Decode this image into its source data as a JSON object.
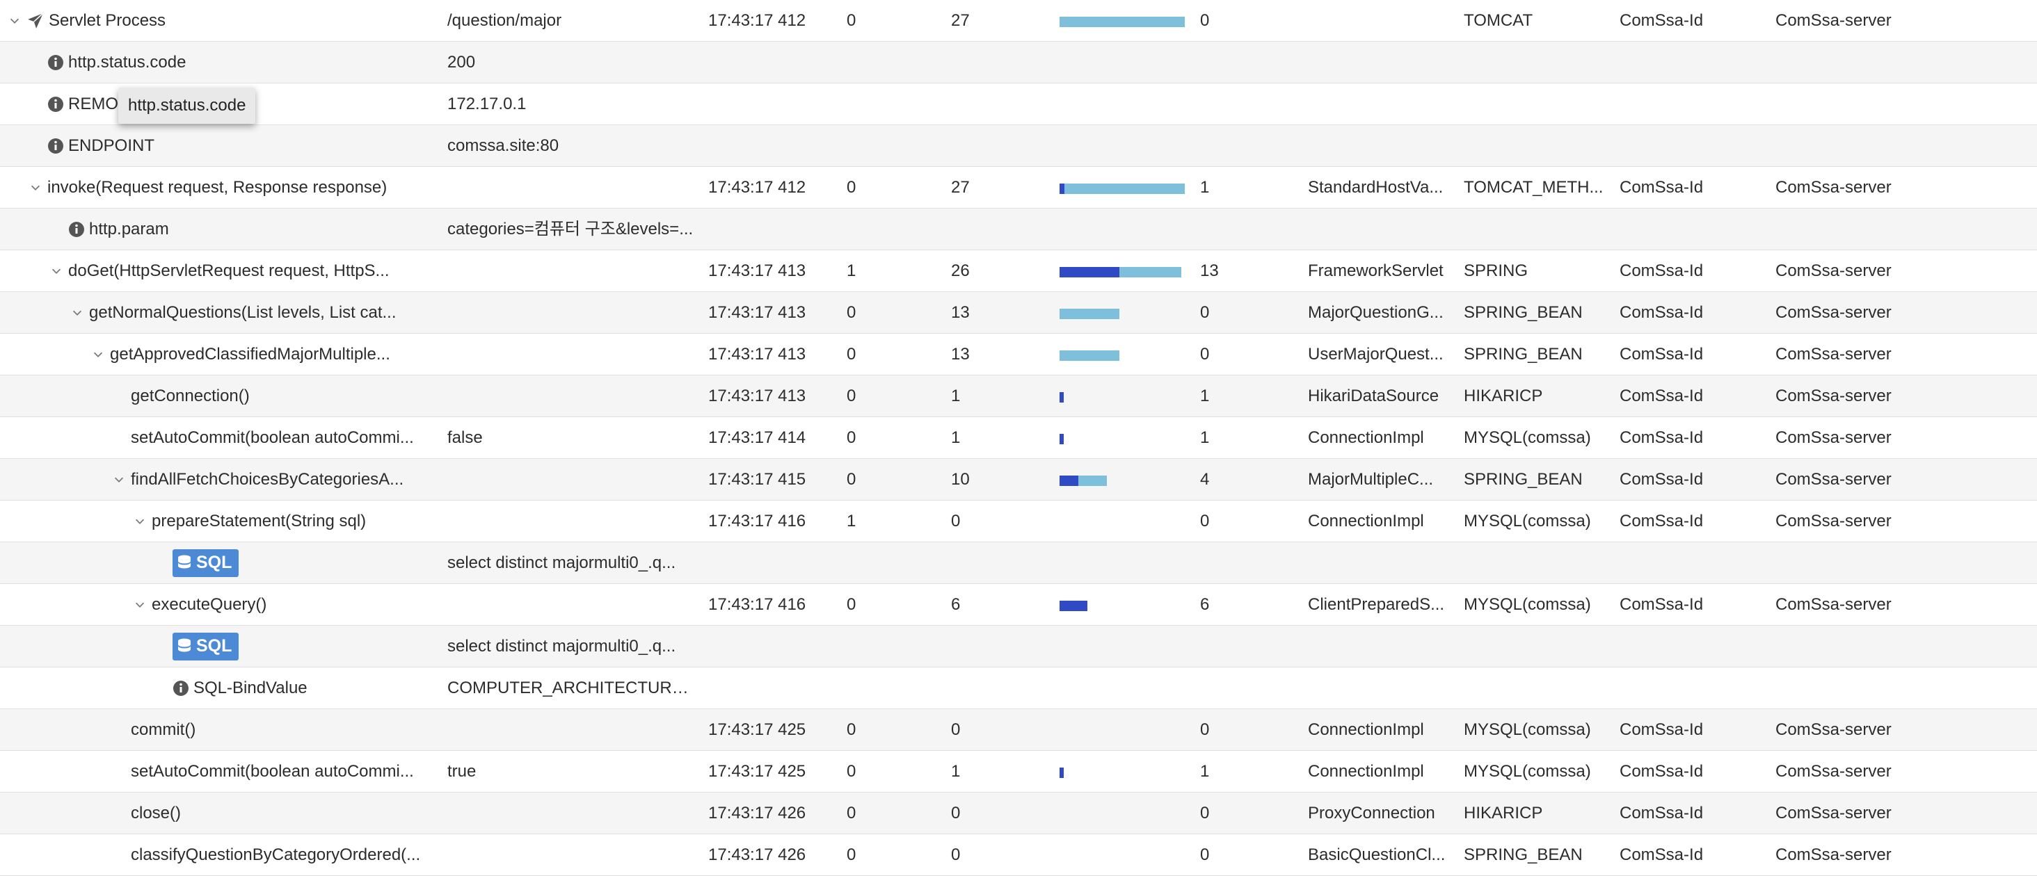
{
  "tooltip": "http.status.code",
  "colors": {
    "bar_elapsed": "#7ec0dc",
    "bar_self": "#3049c4",
    "sql_badge": "#4d8ad6",
    "left_rule": "#3b3fb8"
  },
  "rows": [
    {
      "indent": 0,
      "chevron": "down",
      "icon": "plane-icon",
      "name": "Servlet Process",
      "arg": "/question/major",
      "time": "17:43:17 412",
      "self": "0",
      "elapsed": "27",
      "bar": {
        "total": 1.0,
        "self": 0
      },
      "cpu": "0",
      "class": "",
      "type": "TOMCAT",
      "id": "ComSsa-Id",
      "server": "ComSsa-server"
    },
    {
      "indent": 1,
      "chevron": "",
      "icon": "info-icon",
      "name": "http.status.code",
      "arg": "200",
      "time": "",
      "self": "",
      "elapsed": "",
      "bar": null,
      "cpu": "",
      "class": "",
      "type": "",
      "id": "",
      "server": ""
    },
    {
      "indent": 1,
      "chevron": "",
      "icon": "info-icon",
      "name": "REMOTE_ADDR",
      "arg": "172.17.0.1",
      "time": "",
      "self": "",
      "elapsed": "",
      "bar": null,
      "cpu": "",
      "class": "",
      "type": "",
      "id": "",
      "server": ""
    },
    {
      "indent": 1,
      "chevron": "",
      "icon": "info-icon",
      "name": "ENDPOINT",
      "arg": "comssa.site:80",
      "time": "",
      "self": "",
      "elapsed": "",
      "bar": null,
      "cpu": "",
      "class": "",
      "type": "",
      "id": "",
      "server": ""
    },
    {
      "indent": 1,
      "chevron": "down",
      "icon": "",
      "name": "invoke(Request request, Response response)",
      "arg": "",
      "time": "17:43:17 412",
      "self": "0",
      "elapsed": "27",
      "bar": {
        "total": 1.0,
        "self": 0.04
      },
      "cpu": "1",
      "class": "StandardHostVa...",
      "type": "TOMCAT_METH...",
      "id": "ComSsa-Id",
      "server": "ComSsa-server"
    },
    {
      "indent": 2,
      "chevron": "",
      "icon": "info-icon",
      "name": "http.param",
      "arg": "categories=컴퓨터 구조&levels=...",
      "time": "",
      "self": "",
      "elapsed": "",
      "bar": null,
      "cpu": "",
      "class": "",
      "type": "",
      "id": "",
      "server": ""
    },
    {
      "indent": 2,
      "chevron": "down",
      "icon": "",
      "name": "doGet(HttpServletRequest request, HttpS...",
      "arg": "",
      "time": "17:43:17 413",
      "self": "1",
      "elapsed": "26",
      "bar": {
        "total": 0.97,
        "self": 0.48
      },
      "cpu": "13",
      "class": "FrameworkServlet",
      "type": "SPRING",
      "id": "ComSsa-Id",
      "server": "ComSsa-server"
    },
    {
      "indent": 3,
      "chevron": "down",
      "icon": "",
      "name": "getNormalQuestions(List levels, List cat...",
      "arg": "",
      "time": "17:43:17 413",
      "self": "0",
      "elapsed": "13",
      "bar": {
        "total": 0.48,
        "self": 0
      },
      "cpu": "0",
      "class": "MajorQuestionG...",
      "type": "SPRING_BEAN",
      "id": "ComSsa-Id",
      "server": "ComSsa-server"
    },
    {
      "indent": 4,
      "chevron": "down",
      "icon": "",
      "name": "getApprovedClassifiedMajorMultiple...",
      "arg": "",
      "time": "17:43:17 413",
      "self": "0",
      "elapsed": "13",
      "bar": {
        "total": 0.48,
        "self": 0
      },
      "cpu": "0",
      "class": "UserMajorQuest...",
      "type": "SPRING_BEAN",
      "id": "ComSsa-Id",
      "server": "ComSsa-server"
    },
    {
      "indent": 5,
      "chevron": "",
      "icon": "",
      "name": "getConnection()",
      "arg": "",
      "time": "17:43:17 413",
      "self": "0",
      "elapsed": "1",
      "bar": {
        "total": 0.035,
        "self": 0.035
      },
      "cpu": "1",
      "class": "HikariDataSource",
      "type": "HIKARICP",
      "id": "ComSsa-Id",
      "server": "ComSsa-server"
    },
    {
      "indent": 5,
      "chevron": "",
      "icon": "",
      "name": "setAutoCommit(boolean autoCommi...",
      "arg": "false",
      "time": "17:43:17 414",
      "self": "0",
      "elapsed": "1",
      "bar": {
        "total": 0.035,
        "self": 0.035
      },
      "cpu": "1",
      "class": "ConnectionImpl",
      "type": "MYSQL(comssa)",
      "id": "ComSsa-Id",
      "server": "ComSsa-server"
    },
    {
      "indent": 5,
      "chevron": "down",
      "icon": "",
      "name": "findAllFetchChoicesByCategoriesA...",
      "arg": "",
      "time": "17:43:17 415",
      "self": "0",
      "elapsed": "10",
      "bar": {
        "total": 0.38,
        "self": 0.15
      },
      "cpu": "4",
      "class": "MajorMultipleC...",
      "type": "SPRING_BEAN",
      "id": "ComSsa-Id",
      "server": "ComSsa-server"
    },
    {
      "indent": 6,
      "chevron": "down",
      "icon": "",
      "name": "prepareStatement(String sql)",
      "arg": "",
      "time": "17:43:17 416",
      "self": "1",
      "elapsed": "0",
      "bar": null,
      "cpu": "0",
      "class": "ConnectionImpl",
      "type": "MYSQL(comssa)",
      "id": "ComSsa-Id",
      "server": "ComSsa-server"
    },
    {
      "indent": 7,
      "chevron": "",
      "icon": "sql-icon",
      "name": "SQL",
      "arg": "select distinct majormulti0_.q...",
      "time": "",
      "self": "",
      "elapsed": "",
      "bar": null,
      "cpu": "",
      "class": "",
      "type": "",
      "id": "",
      "server": ""
    },
    {
      "indent": 6,
      "chevron": "down",
      "icon": "",
      "name": "executeQuery()",
      "arg": "",
      "time": "17:43:17 416",
      "self": "0",
      "elapsed": "6",
      "bar": {
        "total": 0.22,
        "self": 0.22
      },
      "cpu": "6",
      "class": "ClientPreparedS...",
      "type": "MYSQL(comssa)",
      "id": "ComSsa-Id",
      "server": "ComSsa-server"
    },
    {
      "indent": 7,
      "chevron": "",
      "icon": "sql-icon",
      "name": "SQL",
      "arg": "select distinct majormulti0_.q...",
      "time": "",
      "self": "",
      "elapsed": "",
      "bar": null,
      "cpu": "",
      "class": "",
      "type": "",
      "id": "",
      "server": ""
    },
    {
      "indent": 7,
      "chevron": "",
      "icon": "info-icon",
      "name": "SQL-BindValue",
      "arg": "COMPUTER_ARCHITECTURE, L...",
      "time": "",
      "self": "",
      "elapsed": "",
      "bar": null,
      "cpu": "",
      "class": "",
      "type": "",
      "id": "",
      "server": ""
    },
    {
      "indent": 5,
      "chevron": "",
      "icon": "",
      "name": "commit()",
      "arg": "",
      "time": "17:43:17 425",
      "self": "0",
      "elapsed": "0",
      "bar": null,
      "cpu": "0",
      "class": "ConnectionImpl",
      "type": "MYSQL(comssa)",
      "id": "ComSsa-Id",
      "server": "ComSsa-server"
    },
    {
      "indent": 5,
      "chevron": "",
      "icon": "",
      "name": "setAutoCommit(boolean autoCommi...",
      "arg": "true",
      "time": "17:43:17 425",
      "self": "0",
      "elapsed": "1",
      "bar": {
        "total": 0.035,
        "self": 0.035
      },
      "cpu": "1",
      "class": "ConnectionImpl",
      "type": "MYSQL(comssa)",
      "id": "ComSsa-Id",
      "server": "ComSsa-server"
    },
    {
      "indent": 5,
      "chevron": "",
      "icon": "",
      "name": "close()",
      "arg": "",
      "time": "17:43:17 426",
      "self": "0",
      "elapsed": "0",
      "bar": null,
      "cpu": "0",
      "class": "ProxyConnection",
      "type": "HIKARICP",
      "id": "ComSsa-Id",
      "server": "ComSsa-server"
    },
    {
      "indent": 5,
      "chevron": "",
      "icon": "",
      "name": "classifyQuestionByCategoryOrdered(...",
      "arg": "",
      "time": "17:43:17 426",
      "self": "0",
      "elapsed": "0",
      "bar": null,
      "cpu": "0",
      "class": "BasicQuestionCl...",
      "type": "SPRING_BEAN",
      "id": "ComSsa-Id",
      "server": "ComSsa-server"
    }
  ]
}
